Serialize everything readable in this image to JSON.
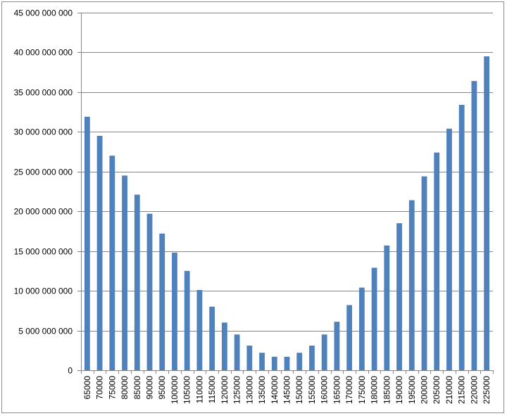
{
  "chart_data": {
    "type": "bar",
    "categories": [
      "65000",
      "70000",
      "75000",
      "80000",
      "85000",
      "90000",
      "95000",
      "100000",
      "105000",
      "110000",
      "115000",
      "120000",
      "125000",
      "130000",
      "135000",
      "140000",
      "145000",
      "150000",
      "155000",
      "160000",
      "165000",
      "170000",
      "175000",
      "180000",
      "185000",
      "190000",
      "195000",
      "200000",
      "205000",
      "210000",
      "215000",
      "220000",
      "225000"
    ],
    "values": [
      31900000000,
      29500000000,
      27000000000,
      24500000000,
      22100000000,
      19700000000,
      17200000000,
      14800000000,
      12500000000,
      10100000000,
      8000000000,
      6000000000,
      4500000000,
      3100000000,
      2200000000,
      1700000000,
      1700000000,
      2200000000,
      3100000000,
      4500000000,
      6100000000,
      8200000000,
      10400000000,
      12900000000,
      15700000000,
      18500000000,
      21400000000,
      24400000000,
      27400000000,
      30400000000,
      33400000000,
      36400000000,
      39500000000
    ],
    "yticks": [
      0,
      5000000000,
      10000000000,
      15000000000,
      20000000000,
      25000000000,
      30000000000,
      35000000000,
      40000000000,
      45000000000
    ],
    "ytick_labels": [
      "0",
      "5 000 000 000",
      "10 000 000 000",
      "15 000 000 000",
      "20 000 000 000",
      "25 000 000 000",
      "30 000 000 000",
      "35 000 000 000",
      "40 000 000 000",
      "45 000 000 000"
    ],
    "ylim": [
      0,
      45000000000
    ],
    "grid": true,
    "legend": "none",
    "title": "",
    "xlabel": "",
    "ylabel": "",
    "bar_color": "#4F81BD",
    "grid_color": "#868686"
  }
}
